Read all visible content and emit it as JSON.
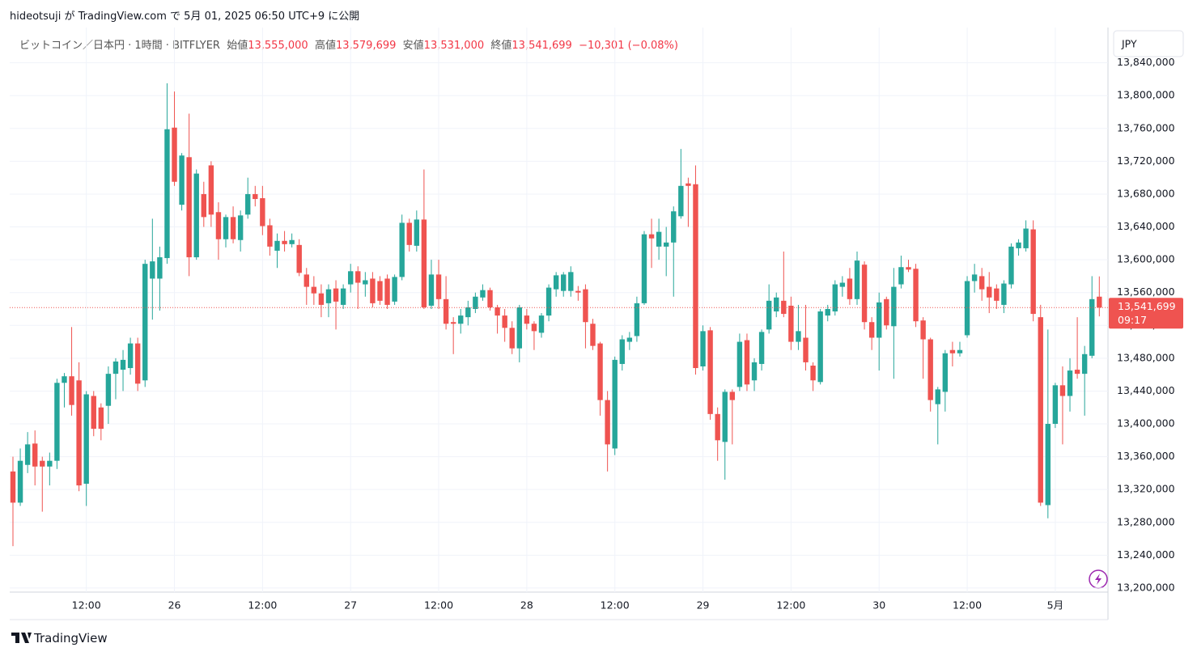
{
  "header": {
    "text": "hideotsuji が TradingView.com で 5月 01, 2025 06:50 UTC+9 に公開"
  },
  "footer": {
    "brand": "TradingView"
  },
  "chart_data": {
    "type": "candlestick",
    "title": "ビットコイン／日本円 · 1時間 · BITFLYER",
    "legend": {
      "open_label": "始値",
      "open": "13,555,000",
      "high_label": "高値",
      "high": "13,579,699",
      "low_label": "安値",
      "low": "13,531,000",
      "close_label": "終値",
      "close": "13,541,699",
      "change": "−10,301 (−0.08%)"
    },
    "currency": "JPY",
    "last_price": {
      "value": 13541699,
      "label": "13,541,699"
    },
    "countdown": "09:17",
    "up_color": "#26a69a",
    "down_color": "#ef5350",
    "grid": true,
    "xlim": [
      -0.44,
      149.18
    ],
    "ylim": [
      13195000,
      13883000
    ],
    "xticks": [
      {
        "value": 10,
        "label": "12:00"
      },
      {
        "value": 22,
        "label": "26"
      },
      {
        "value": 34,
        "label": "12:00"
      },
      {
        "value": 46,
        "label": "27"
      },
      {
        "value": 58,
        "label": "12:00"
      },
      {
        "value": 70,
        "label": "28"
      },
      {
        "value": 82,
        "label": "12:00"
      },
      {
        "value": 94,
        "label": "29"
      },
      {
        "value": 106,
        "label": "12:00"
      },
      {
        "value": 118,
        "label": "30"
      },
      {
        "value": 130,
        "label": "12:00"
      },
      {
        "value": 142,
        "label": "5月"
      }
    ],
    "yticks": [
      {
        "value": 13200000,
        "label": "13,200,000"
      },
      {
        "value": 13240000,
        "label": "13,240,000"
      },
      {
        "value": 13280000,
        "label": "13,280,000"
      },
      {
        "value": 13320000,
        "label": "13,320,000"
      },
      {
        "value": 13360000,
        "label": "13,360,000"
      },
      {
        "value": 13400000,
        "label": "13,400,000"
      },
      {
        "value": 13440000,
        "label": "13,440,000"
      },
      {
        "value": 13480000,
        "label": "13,480,000"
      },
      {
        "value": 13520000,
        "label": "13,520,000"
      },
      {
        "value": 13560000,
        "label": "13,560,000"
      },
      {
        "value": 13600000,
        "label": "13,600,000"
      },
      {
        "value": 13640000,
        "label": "13,640,000"
      },
      {
        "value": 13680000,
        "label": "13,680,000"
      },
      {
        "value": 13720000,
        "label": "13,720,000"
      },
      {
        "value": 13760000,
        "label": "13,760,000"
      },
      {
        "value": 13800000,
        "label": "13,800,000"
      },
      {
        "value": 13840000,
        "label": "13,840,000"
      }
    ],
    "open": [
      13342000,
      13304000,
      13350000,
      13376000,
      13355000,
      13348000,
      13355000,
      13450000,
      13458000,
      13453000,
      13327000,
      13434000,
      13420000,
      13422000,
      13461000,
      13466000,
      13468000,
      13498000,
      13453000,
      13577000,
      13577000,
      13602000,
      13761000,
      13667000,
      13725000,
      13603000,
      13680000,
      13715000,
      13658000,
      13625000,
      13652000,
      13624000,
      13655000,
      13680000,
      13675000,
      13642000,
      13611000,
      13623000,
      13619000,
      13618000,
      13582000,
      13567000,
      13559000,
      13547000,
      13565000,
      13545000,
      13570000,
      13586000,
      13570000,
      13577000,
      13574000,
      13577000,
      13549000,
      13579000,
      13645000,
      13617000,
      13649000,
      13544000,
      13582000,
      13552000,
      13524000,
      13522000,
      13530000,
      13540000,
      13554000,
      13563000,
      13542000,
      13532000,
      13517000,
      13492000,
      13532000,
      13522000,
      13511000,
      13532000,
      13564000,
      13562000,
      13562000,
      13562000,
      13564000,
      13522000,
      13498000,
      13429000,
      13370000,
      13473000,
      13500000,
      13507000,
      13547000,
      13631000,
      13616000,
      13616000,
      13621000,
      13653000,
      13693000,
      13692000,
      13470000,
      13514000,
      13412000,
      13378000,
      13439000,
      13445000,
      13502000,
      13453000,
      13473000,
      13515000,
      13537000,
      13550000,
      13544000,
      13500000,
      13505000,
      13471000,
      13451000,
      13532000,
      13537000,
      13567000,
      13577000,
      13552000,
      13594000,
      13524000,
      13505000,
      13552000,
      13519000,
      13570000,
      13591000,
      13589000,
      13526000,
      13503000,
      13424000,
      13439000,
      13490000,
      13486000,
      13508000,
      13574000,
      13580000,
      13567000,
      13565000,
      13545000,
      13570000,
      13614000,
      13614000,
      13637000,
      13530000,
      13301000,
      13400000,
      13447000,
      13434000,
      13466000,
      13461000,
      13483000,
      13555000
    ],
    "high": [
      13360000,
      13370000,
      13390000,
      13392000,
      13360000,
      13365000,
      13455000,
      13462000,
      13518000,
      13475000,
      13440000,
      13440000,
      13425000,
      13470000,
      13480000,
      13490000,
      13505000,
      13505000,
      13600000,
      13650000,
      13616000,
      13815000,
      13805000,
      13730000,
      13778000,
      13710000,
      13695000,
      13720000,
      13670000,
      13655000,
      13665000,
      13660000,
      13700000,
      13690000,
      13690000,
      13650000,
      13632000,
      13635000,
      13632000,
      13625000,
      13590000,
      13580000,
      13570000,
      13570000,
      13575000,
      13570000,
      13595000,
      13592000,
      13585000,
      13585000,
      13580000,
      13582000,
      13582000,
      13655000,
      13650000,
      13660000,
      13710000,
      13600000,
      13600000,
      13580000,
      13530000,
      13540000,
      13550000,
      13560000,
      13570000,
      13566000,
      13545000,
      13540000,
      13525000,
      13545000,
      13540000,
      13525000,
      13535000,
      13570000,
      13585000,
      13585000,
      13592000,
      13568000,
      13570000,
      13528000,
      13500000,
      13440000,
      13482000,
      13508000,
      13512000,
      13555000,
      13635000,
      13650000,
      13650000,
      13640000,
      13665000,
      13735000,
      13700000,
      13715000,
      13520000,
      13518000,
      13420000,
      13442000,
      13442000,
      13510000,
      13510000,
      13480000,
      13515000,
      13570000,
      13560000,
      13610000,
      13555000,
      13545000,
      13545000,
      13475000,
      13540000,
      13545000,
      13575000,
      13580000,
      13590000,
      13610000,
      13598000,
      13530000,
      13560000,
      13555000,
      13590000,
      13605000,
      13600000,
      13595000,
      13530000,
      13505000,
      13445000,
      13490000,
      13500000,
      13500000,
      13580000,
      13595000,
      13590000,
      13585000,
      13570000,
      13575000,
      13620000,
      13625000,
      13648000,
      13648000,
      13545000,
      13515000,
      13450000,
      13470000,
      13480000,
      13530000,
      13495000,
      13580000,
      13579699
    ],
    "low": [
      13251000,
      13300000,
      13340000,
      13325000,
      13293000,
      13325000,
      13345000,
      13420000,
      13410000,
      13318000,
      13300000,
      13385000,
      13380000,
      13400000,
      13430000,
      13440000,
      13460000,
      13440000,
      13445000,
      13527000,
      13538000,
      13595000,
      13690000,
      13660000,
      13580000,
      13600000,
      13640000,
      13640000,
      13600000,
      13615000,
      13620000,
      13610000,
      13650000,
      13665000,
      13630000,
      13605000,
      13590000,
      13610000,
      13615000,
      13580000,
      13545000,
      13545000,
      13530000,
      13530000,
      13515000,
      13540000,
      13560000,
      13540000,
      13555000,
      13542000,
      13545000,
      13540000,
      13545000,
      13575000,
      13610000,
      13610000,
      13540000,
      13540000,
      13540000,
      13515000,
      13485000,
      13510000,
      13520000,
      13535000,
      13550000,
      13538000,
      13510000,
      13500000,
      13485000,
      13475000,
      13515000,
      13490000,
      13505000,
      13525000,
      13555000,
      13555000,
      13555000,
      13550000,
      13492000,
      13490000,
      13410000,
      13342000,
      13362000,
      13465000,
      13490000,
      13500000,
      13545000,
      13590000,
      13600000,
      13580000,
      13555000,
      13650000,
      13640000,
      13460000,
      13465000,
      13405000,
      13355000,
      13332000,
      13375000,
      13440000,
      13440000,
      13440000,
      13465000,
      13510000,
      13530000,
      13530000,
      13490000,
      13490000,
      13465000,
      13440000,
      13448000,
      13525000,
      13532000,
      13555000,
      13545000,
      13545000,
      13515000,
      13490000,
      13465000,
      13515000,
      13455000,
      13565000,
      13585000,
      13518000,
      13455000,
      13415000,
      13375000,
      13415000,
      13470000,
      13482000,
      13505000,
      13560000,
      13550000,
      13535000,
      13540000,
      13535000,
      13565000,
      13605000,
      13610000,
      13525000,
      13300000,
      13285000,
      13395000,
      13375000,
      13415000,
      13455000,
      13410000,
      13480000,
      13531000
    ],
    "close": [
      13304000,
      13355000,
      13375000,
      13348000,
      13348000,
      13355000,
      13450000,
      13458000,
      13423000,
      13325000,
      13436000,
      13394000,
      13394000,
      13461000,
      13476000,
      13478000,
      13498000,
      13449000,
      13595000,
      13598000,
      13603000,
      13759000,
      13695000,
      13727000,
      13603000,
      13705000,
      13652000,
      13655000,
      13625000,
      13652000,
      13625000,
      13654000,
      13680000,
      13674000,
      13641000,
      13616000,
      13623000,
      13619000,
      13624000,
      13584000,
      13567000,
      13559000,
      13545000,
      13564000,
      13549000,
      13565000,
      13586000,
      13572000,
      13575000,
      13547000,
      13550000,
      13545000,
      13579000,
      13645000,
      13618000,
      13649000,
      13542000,
      13582000,
      13552000,
      13522000,
      13522000,
      13532000,
      13542000,
      13555000,
      13563000,
      13542000,
      13532000,
      13517000,
      13492000,
      13542000,
      13522000,
      13513000,
      13532000,
      13566000,
      13581000,
      13582000,
      13585000,
      13560000,
      13524000,
      13495000,
      13429000,
      13375000,
      13478000,
      13503000,
      13505000,
      13547000,
      13631000,
      13626000,
      13634000,
      13621000,
      13659000,
      13690000,
      13690000,
      13468000,
      13513000,
      13412000,
      13380000,
      13439000,
      13429000,
      13500000,
      13448000,
      13475000,
      13512000,
      13550000,
      13554000,
      13534000,
      13500000,
      13513000,
      13475000,
      13453000,
      13537000,
      13540000,
      13570000,
      13572000,
      13552000,
      13599000,
      13524000,
      13505000,
      13548000,
      13520000,
      13567000,
      13591000,
      13588000,
      13525000,
      13503000,
      13429000,
      13442000,
      13486000,
      13486000,
      13490000,
      13574000,
      13582000,
      13564000,
      13554000,
      13550000,
      13571000,
      13616000,
      13621000,
      13638000,
      13534000,
      13304000,
      13400000,
      13447000,
      13434000,
      13465000,
      13461000,
      13485000,
      13552000,
      13541699
    ]
  }
}
